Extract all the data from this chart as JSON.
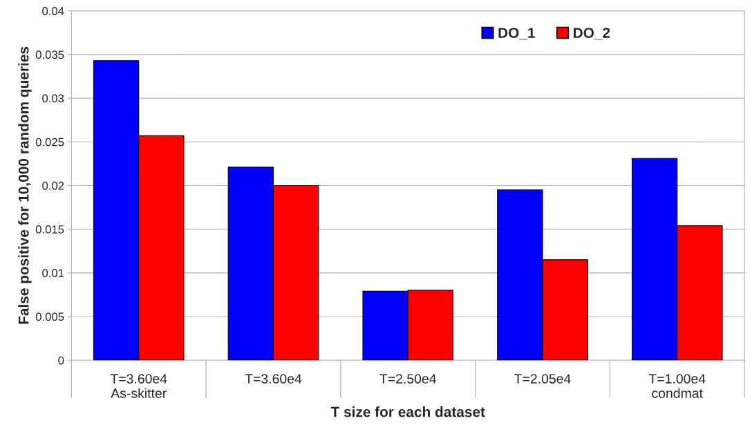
{
  "chart_data": {
    "type": "bar",
    "xlabel": "T size for each dataset",
    "ylabel": "False positive for 10,000 random queries",
    "categories": [
      "T=3.60e4\nAs-skitter",
      "T=3.60e4",
      "T=2.50e4",
      "T=2.05e4",
      "T=1.00e4\ncondmat"
    ],
    "series": [
      {
        "name": "DO_1",
        "color": "#0000ff",
        "values": [
          0.0343,
          0.0221,
          0.0079,
          0.0195,
          0.0231
        ]
      },
      {
        "name": "DO_2",
        "color": "#ff0000",
        "values": [
          0.0257,
          0.02,
          0.008,
          0.0115,
          0.0154
        ]
      }
    ],
    "ylim": [
      0,
      0.04
    ],
    "yticks": [
      0,
      0.005,
      0.01,
      0.015,
      0.02,
      0.025,
      0.03,
      0.035,
      0.04
    ],
    "grid": "y",
    "legend": "top right"
  }
}
